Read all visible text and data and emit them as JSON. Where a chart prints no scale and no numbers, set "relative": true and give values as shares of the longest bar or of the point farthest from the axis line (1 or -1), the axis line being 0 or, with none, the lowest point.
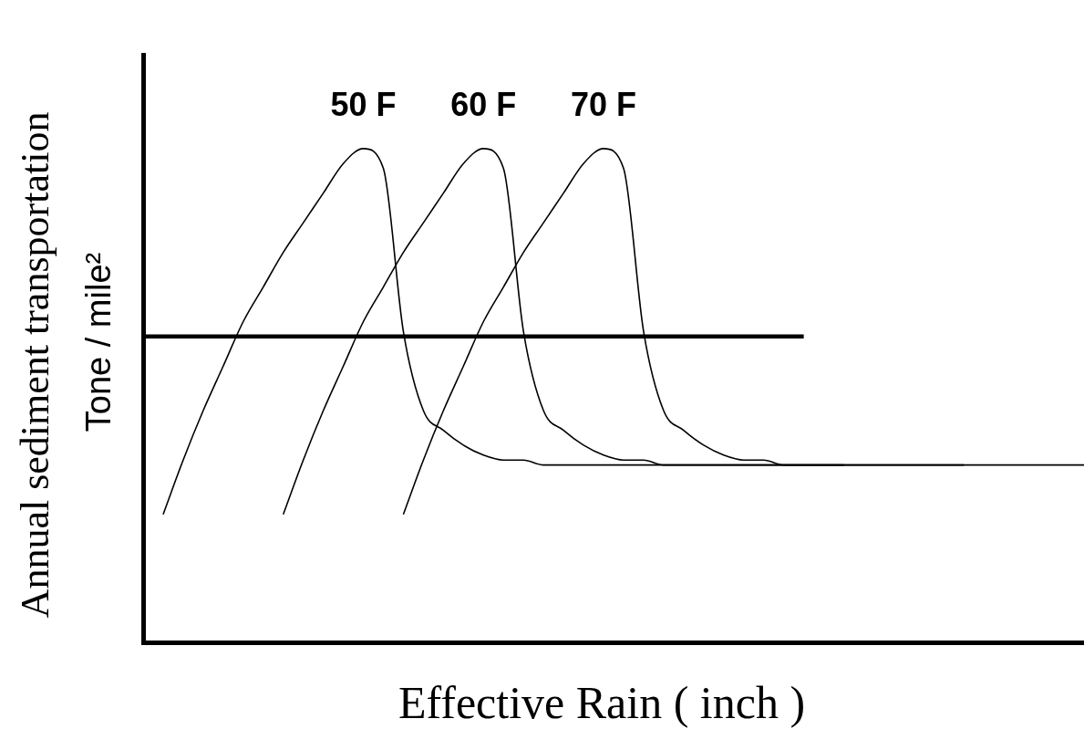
{
  "chart_data": {
    "type": "line",
    "relative": true,
    "grid": false,
    "legend": false,
    "marker": "none",
    "line_style": "solid",
    "xlabel": "Effective Rain ( inch )",
    "ylabel": "Annual sediment transportation\nTone / mile²",
    "categories": [
      null,
      null,
      null,
      null,
      null,
      null,
      null,
      null,
      null,
      null,
      null,
      null,
      null,
      null,
      null,
      null,
      null,
      null,
      null,
      null,
      null,
      null,
      null,
      null,
      null,
      null,
      null,
      null,
      null,
      null,
      null,
      null,
      null,
      null,
      null,
      null,
      null,
      null,
      null,
      null,
      null,
      null,
      null,
      null,
      null,
      null,
      null,
      null
    ],
    "series": [
      {
        "name": "50 F",
        "color": "#000000",
        "values": [
          null,
          0.26,
          0.37,
          0.47,
          0.56,
          0.65,
          0.72,
          0.79,
          0.85,
          0.91,
          0.97,
          1,
          0.96,
          0.63,
          0.47,
          0.43,
          0.4,
          0.38,
          0.37,
          0.37,
          0.36,
          0.36,
          0.36,
          0.36,
          0.36,
          0.36,
          0.36,
          0.36,
          0.36,
          0.36,
          0.36,
          0.36,
          0.36,
          0.36,
          0.36,
          0.36,
          null,
          null,
          null,
          null,
          null,
          null,
          null,
          null,
          null,
          null,
          null,
          null
        ]
      },
      {
        "name": "60 F",
        "color": "#000000",
        "values": [
          null,
          null,
          null,
          null,
          null,
          null,
          null,
          0.26,
          0.37,
          0.47,
          0.56,
          0.65,
          0.72,
          0.79,
          0.85,
          0.91,
          0.97,
          1,
          0.96,
          0.63,
          0.47,
          0.43,
          0.4,
          0.38,
          0.37,
          0.37,
          0.36,
          0.36,
          0.36,
          0.36,
          0.36,
          0.36,
          0.36,
          0.36,
          0.36,
          0.36,
          0.36,
          0.36,
          0.36,
          0.36,
          0.36,
          0.36,
          null,
          null,
          null,
          null,
          null,
          null
        ]
      },
      {
        "name": "70 F",
        "color": "#000000",
        "values": [
          null,
          null,
          null,
          null,
          null,
          null,
          null,
          null,
          null,
          null,
          null,
          null,
          null,
          0.26,
          0.37,
          0.47,
          0.56,
          0.65,
          0.72,
          0.79,
          0.85,
          0.91,
          0.97,
          1,
          0.96,
          0.63,
          0.47,
          0.43,
          0.4,
          0.38,
          0.37,
          0.37,
          0.36,
          0.36,
          0.36,
          0.36,
          0.36,
          0.36,
          0.36,
          0.36,
          0.36,
          0.36,
          0.36,
          0.36,
          0.36,
          0.36,
          0.36,
          0.36
        ]
      },
      {
        "color": "#000000",
        "values": [
          0.62,
          0.62,
          0.62,
          0.62,
          0.62,
          0.62,
          0.62,
          0.62,
          0.62,
          0.62,
          0.62,
          0.62,
          0.62,
          0.62,
          0.62,
          0.62,
          0.62,
          0.62,
          0.62,
          0.62,
          0.62,
          0.62,
          0.62,
          0.62,
          0.62,
          0.62,
          0.62,
          0.62,
          0.62,
          0.62,
          0.62,
          0.62,
          0.62,
          0.62,
          null,
          null,
          null,
          null,
          null,
          null,
          null,
          null,
          null,
          null,
          null,
          null,
          null,
          null
        ]
      }
    ]
  }
}
